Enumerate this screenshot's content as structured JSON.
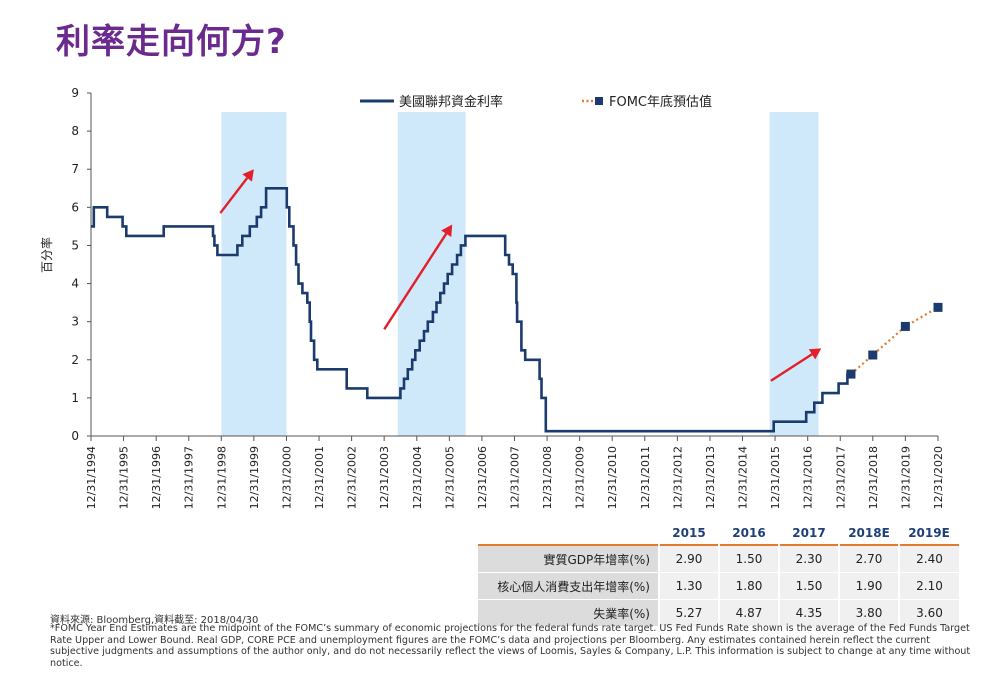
{
  "page": {
    "title": "利率走向何方?",
    "source": "資料來源: Bloomberg,資料截至: 2018/04/30",
    "footnote": "*FOMC Year End Estimates are the midpoint of the FOMC’s summary of economic projections for the  federal funds rate target. US Fed Funds Rate shown is the average of the Fed Funds Target Rate Upper and Lower Bound. Real GDP, CORE PCE and unemployment figures are the FOMC’s data and projections per Bloomberg. Any estimates contained herein reflect the current subjective judgments and assumptions of the author only, and do not necessarily reflect the views of Loomis, Sayles & Company, L.P. This information is subject to change at any time without notice."
  },
  "colors": {
    "title": "#6b2a8e",
    "series_line": "#1b3b6f",
    "fomc_dotted": "#e07a2f",
    "highlight_band": "#cfe8fa",
    "arrow": "#e2202a",
    "table_rule": "#e07a2f"
  },
  "chart_data": {
    "type": "line",
    "title": "",
    "xlabel": "",
    "ylabel": "百分率",
    "ylim": [
      0,
      9
    ],
    "yticks": [
      0,
      1,
      2,
      3,
      4,
      5,
      6,
      7,
      8,
      9
    ],
    "xlim": [
      "1994-12-31",
      "2020-12-31"
    ],
    "xticks": [
      "12/31/1994",
      "12/31/1995",
      "12/31/1996",
      "12/31/1997",
      "12/31/1998",
      "12/31/1999",
      "12/31/2000",
      "12/31/2001",
      "12/31/2002",
      "12/31/2003",
      "12/31/2004",
      "12/31/2005",
      "12/31/2006",
      "12/31/2007",
      "12/31/2008",
      "12/31/2009",
      "12/31/2010",
      "12/31/2011",
      "12/31/2012",
      "12/31/2013",
      "12/31/2014",
      "12/31/2015",
      "12/31/2016",
      "12/31/2017",
      "12/31/2018",
      "12/31/2019",
      "12/31/2020"
    ],
    "grid": false,
    "legend_position": "top",
    "series": [
      {
        "name": "美國聯邦資金利率",
        "style": "step-line",
        "points": [
          [
            "1994-12-31",
            5.5
          ],
          [
            "1995-01-31",
            6.0
          ],
          [
            "1995-07-01",
            5.75
          ],
          [
            "1995-12-20",
            5.5
          ],
          [
            "1996-01-31",
            5.25
          ],
          [
            "1997-03-25",
            5.5
          ],
          [
            "1998-09-29",
            5.25
          ],
          [
            "1998-10-15",
            5.0
          ],
          [
            "1998-11-17",
            4.75
          ],
          [
            "1999-06-30",
            5.0
          ],
          [
            "1999-08-24",
            5.25
          ],
          [
            "1999-11-16",
            5.5
          ],
          [
            "2000-02-02",
            5.75
          ],
          [
            "2000-03-21",
            6.0
          ],
          [
            "2000-05-16",
            6.5
          ],
          [
            "2001-01-03",
            6.0
          ],
          [
            "2001-01-31",
            5.5
          ],
          [
            "2001-03-20",
            5.0
          ],
          [
            "2001-04-18",
            4.5
          ],
          [
            "2001-05-15",
            4.0
          ],
          [
            "2001-06-27",
            3.75
          ],
          [
            "2001-08-21",
            3.5
          ],
          [
            "2001-09-17",
            3.0
          ],
          [
            "2001-10-02",
            2.5
          ],
          [
            "2001-11-06",
            2.0
          ],
          [
            "2001-12-11",
            1.75
          ],
          [
            "2002-11-06",
            1.25
          ],
          [
            "2003-06-25",
            1.0
          ],
          [
            "2004-06-30",
            1.25
          ],
          [
            "2004-08-10",
            1.5
          ],
          [
            "2004-09-21",
            1.75
          ],
          [
            "2004-11-10",
            2.0
          ],
          [
            "2004-12-14",
            2.25
          ],
          [
            "2005-02-02",
            2.5
          ],
          [
            "2005-03-22",
            2.75
          ],
          [
            "2005-05-03",
            3.0
          ],
          [
            "2005-06-30",
            3.25
          ],
          [
            "2005-08-09",
            3.5
          ],
          [
            "2005-09-20",
            3.75
          ],
          [
            "2005-11-01",
            4.0
          ],
          [
            "2005-12-13",
            4.25
          ],
          [
            "2006-01-31",
            4.5
          ],
          [
            "2006-03-28",
            4.75
          ],
          [
            "2006-05-10",
            5.0
          ],
          [
            "2006-06-29",
            5.25
          ],
          [
            "2007-09-18",
            4.75
          ],
          [
            "2007-10-31",
            4.5
          ],
          [
            "2007-12-11",
            4.25
          ],
          [
            "2008-01-22",
            3.5
          ],
          [
            "2008-01-30",
            3.0
          ],
          [
            "2008-03-18",
            2.25
          ],
          [
            "2008-04-30",
            2.0
          ],
          [
            "2008-10-08",
            1.5
          ],
          [
            "2008-10-29",
            1.0
          ],
          [
            "2008-12-16",
            0.125
          ],
          [
            "2015-12-16",
            0.375
          ],
          [
            "2016-12-14",
            0.625
          ],
          [
            "2017-03-15",
            0.875
          ],
          [
            "2017-06-14",
            1.125
          ],
          [
            "2017-12-13",
            1.375
          ],
          [
            "2018-03-21",
            1.625
          ],
          [
            "2018-04-30",
            1.625
          ]
        ]
      },
      {
        "name": "FOMC年底預估值",
        "style": "dotted-with-markers",
        "points": [
          [
            "2018-04-30",
            1.625
          ],
          [
            "2018-12-31",
            2.125
          ],
          [
            "2019-12-31",
            2.875
          ],
          [
            "2020-12-31",
            3.375
          ]
        ]
      }
    ],
    "highlight_bands": [
      [
        "1999-01-01",
        "2001-01-01"
      ],
      [
        "2004-06-01",
        "2006-07-01"
      ],
      [
        "2015-11-01",
        "2017-05-01"
      ]
    ],
    "arrows": [
      [
        [
          "1998-12-20",
          5.85
        ],
        [
          "1999-12-31",
          7.0
        ]
      ],
      [
        [
          "2004-01-01",
          2.8
        ],
        [
          "2006-02-01",
          5.55
        ]
      ],
      [
        [
          "2015-11-15",
          1.45
        ],
        [
          "2017-06-01",
          2.3
        ]
      ]
    ]
  },
  "table": {
    "columns": [
      "2015",
      "2016",
      "2017",
      "2018E",
      "2019E"
    ],
    "rows": [
      {
        "label": "實質GDP年增率(%)",
        "values": [
          "2.90",
          "1.50",
          "2.30",
          "2.70",
          "2.40"
        ]
      },
      {
        "label": "核心個人消費支出年增率(%)",
        "values": [
          "1.30",
          "1.80",
          "1.50",
          "1.90",
          "2.10"
        ]
      },
      {
        "label": "失業率(%)",
        "values": [
          "5.27",
          "4.87",
          "4.35",
          "3.80",
          "3.60"
        ]
      }
    ]
  }
}
